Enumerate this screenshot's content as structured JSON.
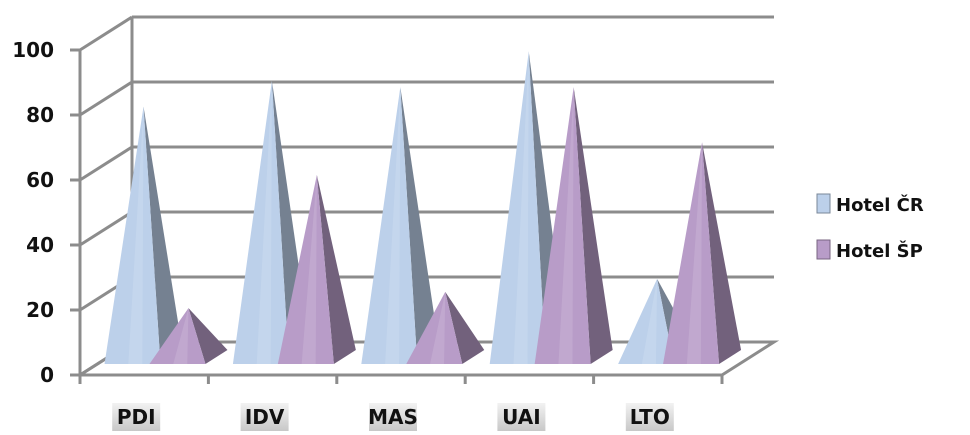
{
  "chart_data": {
    "type": "bar",
    "shape": "pyramid-3d",
    "categories": [
      "PDI",
      "IDV",
      "MAS",
      "UAI",
      "LTO"
    ],
    "series": [
      {
        "name": "Hotel ČR",
        "values": [
          78,
          86,
          84,
          95,
          25
        ],
        "color": "#bcd0ea"
      },
      {
        "name": "Hotel ŠP",
        "values": [
          16,
          57,
          21,
          84,
          67
        ],
        "color": "#b89cc8"
      }
    ],
    "ylim": [
      0,
      100
    ],
    "yticks": [
      0,
      20,
      40,
      60,
      80,
      100
    ],
    "grid": true,
    "legend_position": "right"
  }
}
